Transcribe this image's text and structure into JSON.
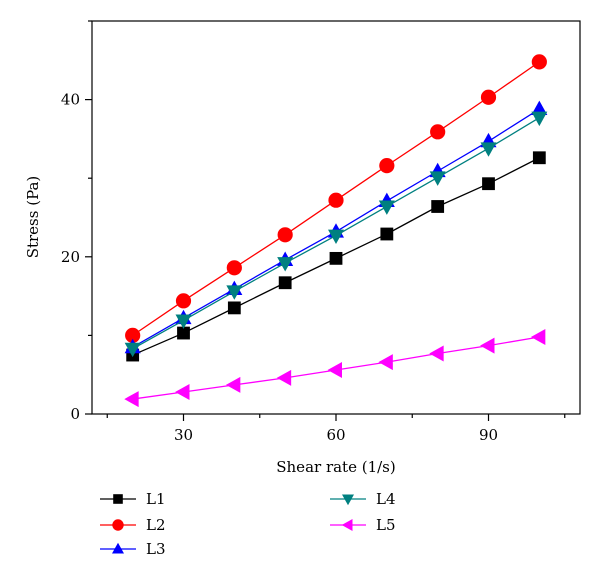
{
  "chart_data": {
    "type": "line",
    "title": "",
    "xlabel": "Shear rate (1/s)",
    "ylabel": "Stress (Pa)",
    "xlim": [
      12,
      108
    ],
    "ylim": [
      0,
      50
    ],
    "xticks": [
      30,
      60,
      90
    ],
    "yticks": [
      0,
      20,
      40
    ],
    "xtick_labels": [
      "30",
      "60",
      "90"
    ],
    "ytick_labels": [
      "0",
      "20",
      "40"
    ],
    "grid": false,
    "legend_position": "bottom",
    "x": [
      20,
      30,
      40,
      50,
      60,
      70,
      80,
      90,
      100
    ],
    "series": [
      {
        "name": "L1",
        "color": "#000000",
        "marker": "square",
        "values": [
          7.5,
          10.3,
          13.5,
          16.7,
          19.8,
          22.9,
          26.4,
          29.3,
          32.6
        ]
      },
      {
        "name": "L2",
        "color": "#ff0000",
        "marker": "circle",
        "values": [
          10.0,
          14.4,
          18.6,
          22.8,
          27.2,
          31.6,
          35.9,
          40.3,
          44.8
        ]
      },
      {
        "name": "L3",
        "color": "#0000ff",
        "marker": "triangle-up",
        "values": [
          8.5,
          12.2,
          15.9,
          19.6,
          23.2,
          27.1,
          30.9,
          34.7,
          38.8
        ]
      },
      {
        "name": "L4",
        "color": "#008080",
        "marker": "triangle-down",
        "values": [
          8.3,
          11.9,
          15.6,
          19.2,
          22.7,
          26.4,
          30.1,
          33.8,
          37.7
        ]
      },
      {
        "name": "L5",
        "color": "#ff00ff",
        "marker": "triangle-left",
        "values": [
          1.9,
          2.8,
          3.7,
          4.6,
          5.6,
          6.6,
          7.7,
          8.7,
          9.8
        ]
      }
    ]
  }
}
